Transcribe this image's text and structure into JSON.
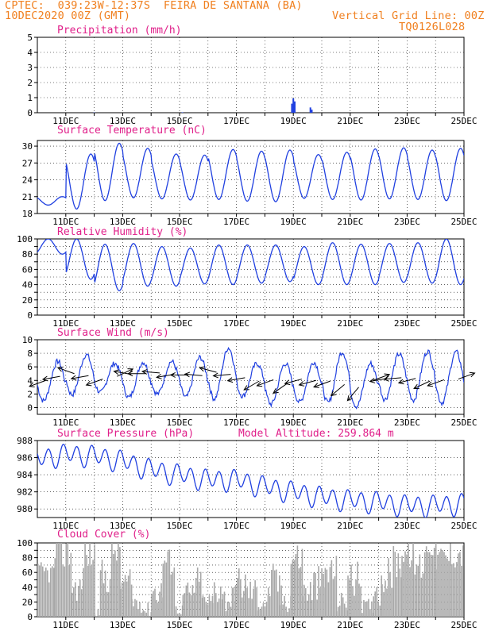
{
  "header": {
    "left1": "CPTEC:  039:23W-12:37S  FEIRA DE SANTANA (BA)",
    "left2": "10DEC2020 00Z (GMT)",
    "right1": "Vertical Grid Line: 00Z",
    "right2": "TQ0126L028"
  },
  "colors": {
    "header": "#f08020",
    "title": "#e0208a",
    "line": "#2040e0",
    "cloud": "#a8a8a8",
    "arrow": "#000000"
  },
  "x_ticks": [
    "11DEC",
    "13DEC",
    "15DEC",
    "17DEC",
    "19DEC",
    "21DEC",
    "23DEC",
    "25DEC"
  ],
  "chart_data": [
    {
      "type": "bar",
      "title": "Precipitation (mm/h)",
      "ylim": [
        0,
        5
      ],
      "yticks": [
        0,
        1,
        2,
        3,
        4,
        5
      ],
      "x_range_days": [
        10,
        25
      ],
      "points": [
        [
          18.95,
          0.6
        ],
        [
          19.0,
          0.95
        ],
        [
          19.05,
          0.75
        ],
        [
          19.6,
          0.35
        ],
        [
          19.65,
          0.2
        ],
        [
          12.0,
          0.02
        ],
        [
          15.1,
          0.03
        ]
      ]
    },
    {
      "type": "line",
      "title": "Surface Temperature (nC)",
      "ylim": [
        18,
        31
      ],
      "yticks": [
        18,
        21,
        24,
        27,
        30
      ],
      "x_range_days": [
        10,
        25
      ],
      "base": 20.0,
      "daily_max": [
        21.0,
        28.6,
        30.5,
        29.6,
        28.6,
        28.4,
        29.4,
        29.1,
        29.3,
        28.5,
        28.9,
        29.5,
        29.7,
        29.3,
        29.6,
        29.0
      ],
      "daily_min": [
        19.5,
        18.8,
        20.3,
        20.8,
        20.6,
        20.4,
        20.5,
        20.2,
        20.1,
        20.7,
        20.5,
        20.4,
        20.6,
        20.5,
        20.3,
        23.0
      ]
    },
    {
      "type": "line",
      "title": "Relative Humidity (%)",
      "ylim": [
        0,
        100
      ],
      "yticks": [
        0,
        10,
        20,
        30,
        40,
        50,
        60,
        70,
        80,
        90,
        100
      ],
      "ytick_labels": [
        0,
        20,
        40,
        60,
        80,
        100
      ],
      "x_range_days": [
        10,
        25
      ],
      "daily_max": [
        100,
        100,
        93,
        94,
        90,
        88,
        92,
        92,
        92,
        90,
        95,
        93,
        94,
        95,
        100,
        98
      ],
      "daily_min": [
        80,
        47,
        32,
        38,
        38,
        41,
        40,
        42,
        44,
        40,
        40,
        40,
        43,
        42,
        40,
        45
      ]
    },
    {
      "type": "line",
      "title": "Surface Wind (m/s)",
      "ylim": [
        -1,
        10
      ],
      "yticks": [
        0,
        2,
        4,
        6,
        8,
        10
      ],
      "x_range_days": [
        10,
        25
      ],
      "daily_max": [
        6.8,
        7.8,
        6.5,
        6.7,
        6.8,
        7.4,
        8.8,
        6.5,
        6.5,
        6.7,
        8.2,
        6.5,
        7.9,
        8.3,
        8.2
      ],
      "daily_min": [
        1.0,
        1.9,
        2.2,
        1.5,
        2.0,
        1.5,
        1.3,
        1.7,
        0.5,
        0.8,
        0.7,
        0.2,
        1.2,
        1.1,
        0.7
      ],
      "arrows": [
        [
          10.3,
          4.0,
          200
        ],
        [
          10.8,
          4.6,
          190
        ],
        [
          11.3,
          5.0,
          160
        ],
        [
          11.8,
          4.7,
          190
        ],
        [
          12.3,
          4.2,
          200
        ],
        [
          12.8,
          4.6,
          25
        ],
        [
          13.3,
          4.9,
          170
        ],
        [
          13.8,
          5.0,
          180
        ],
        [
          14.3,
          5.1,
          175
        ],
        [
          14.8,
          4.9,
          190
        ],
        [
          15.3,
          4.8,
          180
        ],
        [
          15.8,
          4.7,
          175
        ],
        [
          16.3,
          5.2,
          165
        ],
        [
          16.8,
          4.9,
          185
        ],
        [
          17.3,
          4.4,
          190
        ],
        [
          17.8,
          3.9,
          210
        ],
        [
          18.3,
          4.1,
          200
        ],
        [
          18.8,
          3.6,
          215
        ],
        [
          19.3,
          4.2,
          195
        ],
        [
          19.8,
          4.0,
          195
        ],
        [
          20.3,
          3.9,
          200
        ],
        [
          20.8,
          3.4,
          220
        ],
        [
          21.3,
          3.0,
          230
        ],
        [
          21.8,
          4.0,
          20
        ],
        [
          22.3,
          4.3,
          190
        ],
        [
          22.8,
          4.4,
          185
        ],
        [
          23.3,
          4.3,
          195
        ],
        [
          23.8,
          3.9,
          205
        ],
        [
          24.3,
          4.1,
          200
        ],
        [
          24.8,
          4.2,
          20
        ]
      ]
    },
    {
      "type": "line",
      "title": "Surface Pressure (hPa)",
      "annotation": "Model Altitude: 259.864 m",
      "ylim": [
        979,
        988
      ],
      "yticks": [
        980,
        982,
        984,
        986,
        988
      ],
      "x_range_days": [
        10,
        25
      ],
      "trend": [
        [
          10,
          985.8
        ],
        [
          11,
          986.4
        ],
        [
          12,
          986.2
        ],
        [
          13,
          985.6
        ],
        [
          14,
          984.6
        ],
        [
          15,
          984.0
        ],
        [
          16,
          983.4
        ],
        [
          17,
          983.4
        ],
        [
          18,
          982.6
        ],
        [
          19,
          982.0
        ],
        [
          20,
          981.4
        ],
        [
          21,
          981.0
        ],
        [
          22,
          980.8
        ],
        [
          23,
          980.4
        ],
        [
          24,
          980.4
        ],
        [
          25,
          980.6
        ]
      ],
      "amplitude": 1.8
    },
    {
      "type": "bar",
      "title": "Cloud Cover (%)",
      "ylim": [
        0,
        100
      ],
      "yticks": [
        0,
        10,
        20,
        30,
        40,
        50,
        60,
        70,
        80,
        90,
        100
      ],
      "ytick_labels": [
        0,
        20,
        40,
        60,
        80,
        100
      ],
      "x_range_days": [
        10,
        25
      ],
      "segments": [
        [
          10.0,
          10.6,
          60,
          15
        ],
        [
          10.6,
          11.2,
          90,
          30
        ],
        [
          11.2,
          11.6,
          40,
          20
        ],
        [
          11.6,
          12.0,
          85,
          25
        ],
        [
          12.0,
          12.2,
          5,
          5
        ],
        [
          12.2,
          12.6,
          55,
          25
        ],
        [
          12.6,
          12.9,
          90,
          20
        ],
        [
          12.9,
          13.3,
          45,
          20
        ],
        [
          13.3,
          13.7,
          20,
          15
        ],
        [
          13.7,
          14.0,
          10,
          10
        ],
        [
          14.0,
          14.4,
          35,
          20
        ],
        [
          14.4,
          14.8,
          75,
          20
        ],
        [
          14.8,
          15.1,
          10,
          8
        ],
        [
          15.1,
          15.5,
          30,
          20
        ],
        [
          15.5,
          15.8,
          45,
          25
        ],
        [
          15.8,
          16.2,
          20,
          15
        ],
        [
          16.2,
          16.5,
          40,
          25
        ],
        [
          16.5,
          16.9,
          25,
          20
        ],
        [
          16.9,
          17.3,
          45,
          25
        ],
        [
          17.3,
          17.7,
          35,
          20
        ],
        [
          17.7,
          18.1,
          20,
          15
        ],
        [
          18.1,
          18.5,
          45,
          30
        ],
        [
          18.5,
          18.9,
          25,
          20
        ],
        [
          18.9,
          19.3,
          80,
          25
        ],
        [
          19.3,
          19.7,
          35,
          20
        ],
        [
          19.7,
          20.1,
          45,
          25
        ],
        [
          20.1,
          20.5,
          60,
          25
        ],
        [
          20.5,
          20.9,
          20,
          15
        ],
        [
          20.9,
          21.4,
          50,
          25
        ],
        [
          21.4,
          21.8,
          15,
          10
        ],
        [
          21.8,
          22.1,
          40,
          25
        ],
        [
          22.1,
          22.5,
          55,
          25
        ],
        [
          22.5,
          22.8,
          75,
          25
        ],
        [
          22.8,
          23.2,
          85,
          20
        ],
        [
          23.2,
          23.6,
          70,
          25
        ],
        [
          23.6,
          24.0,
          92,
          10
        ],
        [
          24.0,
          24.5,
          80,
          20
        ],
        [
          24.5,
          25.0,
          85,
          20
        ]
      ]
    }
  ]
}
